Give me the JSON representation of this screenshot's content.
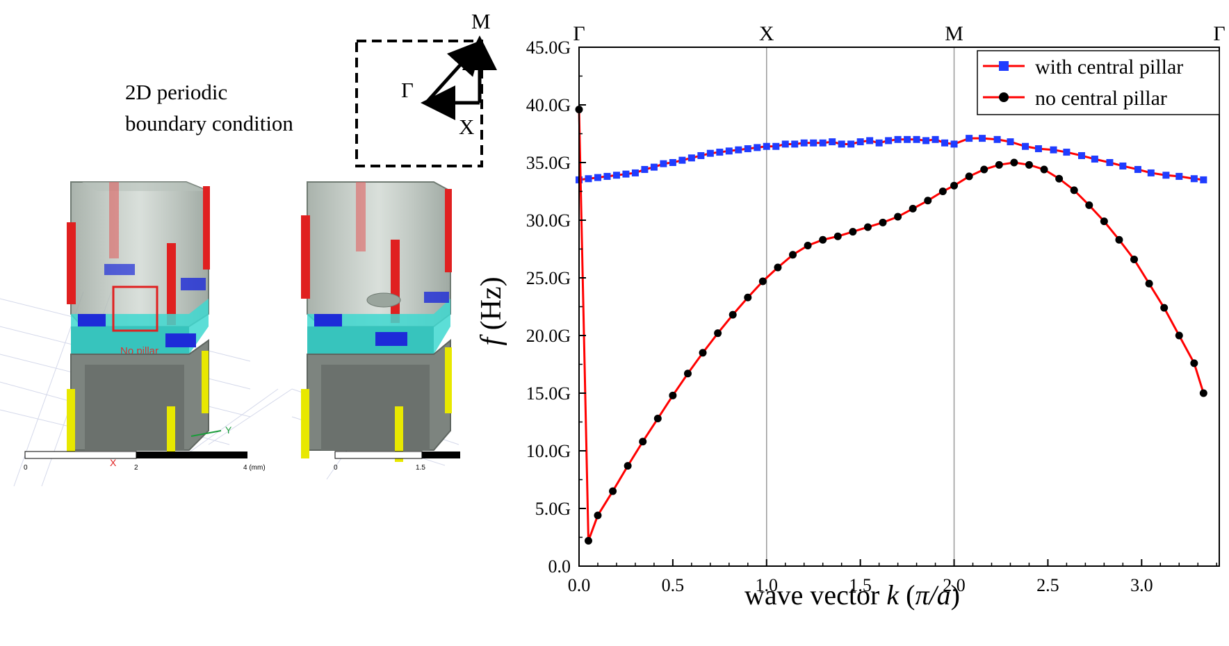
{
  "figure": {
    "boundary_label_line1": "2D periodic",
    "boundary_label_line2": "boundary condition",
    "brillouin": {
      "gamma": "Γ",
      "x": "X",
      "m": "M"
    },
    "model_left": {
      "no_pillar_label": "No pillar",
      "scale_labels": [
        "0",
        "2",
        "4 (mm)"
      ],
      "axis_x": "X",
      "axis_y": "Y"
    },
    "model_right": {
      "scale_labels": [
        "0",
        "1.5"
      ]
    },
    "colors": {
      "metal": "#8e9a92",
      "pillar_red": "#e02020",
      "pillar_yellow": "#e8e800",
      "substrate_cyan": "#3fd8d0",
      "pad_blue": "#1d2bd8",
      "grid": "#cfd3e6"
    }
  },
  "chart_data": {
    "type": "line",
    "xlabel_prefix": "wave vector ",
    "xlabel_var": "k",
    "xlabel_unit_open": " (",
    "xlabel_unit": "π/a",
    "xlabel_unit_close": ")",
    "ylabel_var": "f",
    "ylabel_unit": " (Hz)",
    "xlim": [
      0,
      3.414
    ],
    "ylim": [
      0,
      45
    ],
    "x_ticks": [
      0.0,
      0.5,
      1.0,
      1.5,
      2.0,
      2.5,
      3.0
    ],
    "x_tick_labels": [
      "0.0",
      "0.5",
      "1.0",
      "1.5",
      "2.0",
      "2.5",
      "3.0"
    ],
    "y_ticks": [
      0,
      5,
      10,
      15,
      20,
      25,
      30,
      35,
      40,
      45
    ],
    "y_tick_labels": [
      "0.0",
      "5.0G",
      "10.0G",
      "15.0G",
      "20.0G",
      "25.0G",
      "30.0G",
      "35.0G",
      "40.0G",
      "45.0G"
    ],
    "symmetry_points": [
      {
        "label": "Γ",
        "x": 0
      },
      {
        "label": "X",
        "x": 1
      },
      {
        "label": "M",
        "x": 2
      },
      {
        "label": "Γ",
        "x": 3.414
      }
    ],
    "legend_position": "top-right",
    "series": [
      {
        "name": "with central pillar",
        "line_color": "#ff0000",
        "marker_color": "#1f3cff",
        "marker": "square",
        "x": [
          0.0,
          0.05,
          0.1,
          0.15,
          0.2,
          0.25,
          0.3,
          0.35,
          0.4,
          0.45,
          0.5,
          0.55,
          0.6,
          0.65,
          0.7,
          0.75,
          0.8,
          0.85,
          0.9,
          0.95,
          1.0,
          1.05,
          1.1,
          1.15,
          1.2,
          1.25,
          1.3,
          1.35,
          1.4,
          1.45,
          1.5,
          1.55,
          1.6,
          1.65,
          1.7,
          1.75,
          1.8,
          1.85,
          1.9,
          1.95,
          2.0,
          2.08,
          2.15,
          2.23,
          2.3,
          2.38,
          2.45,
          2.53,
          2.6,
          2.68,
          2.75,
          2.83,
          2.9,
          2.98,
          3.05,
          3.13,
          3.2,
          3.28,
          3.33
        ],
        "y": [
          33.5,
          33.6,
          33.7,
          33.8,
          33.9,
          34.0,
          34.1,
          34.4,
          34.6,
          34.9,
          35.0,
          35.2,
          35.4,
          35.6,
          35.8,
          35.9,
          36.0,
          36.1,
          36.2,
          36.3,
          36.4,
          36.4,
          36.6,
          36.6,
          36.7,
          36.7,
          36.7,
          36.8,
          36.6,
          36.6,
          36.8,
          36.9,
          36.7,
          36.9,
          37.0,
          37.0,
          37.0,
          36.9,
          37.0,
          36.7,
          36.6,
          37.1,
          37.1,
          37.0,
          36.8,
          36.4,
          36.2,
          36.1,
          35.9,
          35.6,
          35.3,
          35.0,
          34.7,
          34.4,
          34.1,
          33.9,
          33.8,
          33.6,
          33.5
        ]
      },
      {
        "name": "no central pillar",
        "line_color": "#ff0000",
        "marker_color": "#000000",
        "marker": "circle",
        "x": [
          0.0,
          0.05,
          0.1,
          0.18,
          0.26,
          0.34,
          0.42,
          0.5,
          0.58,
          0.66,
          0.74,
          0.82,
          0.9,
          0.98,
          1.06,
          1.14,
          1.22,
          1.3,
          1.38,
          1.46,
          1.54,
          1.62,
          1.7,
          1.78,
          1.86,
          1.94,
          2.0,
          2.08,
          2.16,
          2.24,
          2.32,
          2.4,
          2.48,
          2.56,
          2.64,
          2.72,
          2.8,
          2.88,
          2.96,
          3.04,
          3.12,
          3.2,
          3.28,
          3.33
        ],
        "y": [
          39.6,
          2.2,
          4.4,
          6.5,
          8.7,
          10.8,
          12.8,
          14.8,
          16.7,
          18.5,
          20.2,
          21.8,
          23.3,
          24.7,
          25.9,
          27.0,
          27.8,
          28.3,
          28.6,
          29.0,
          29.4,
          29.8,
          30.3,
          31.0,
          31.7,
          32.5,
          33.0,
          33.8,
          34.4,
          34.8,
          35.0,
          34.8,
          34.4,
          33.6,
          32.6,
          31.3,
          29.9,
          28.3,
          26.6,
          24.5,
          22.4,
          20.0,
          17.6,
          15.0
        ]
      }
    ]
  }
}
